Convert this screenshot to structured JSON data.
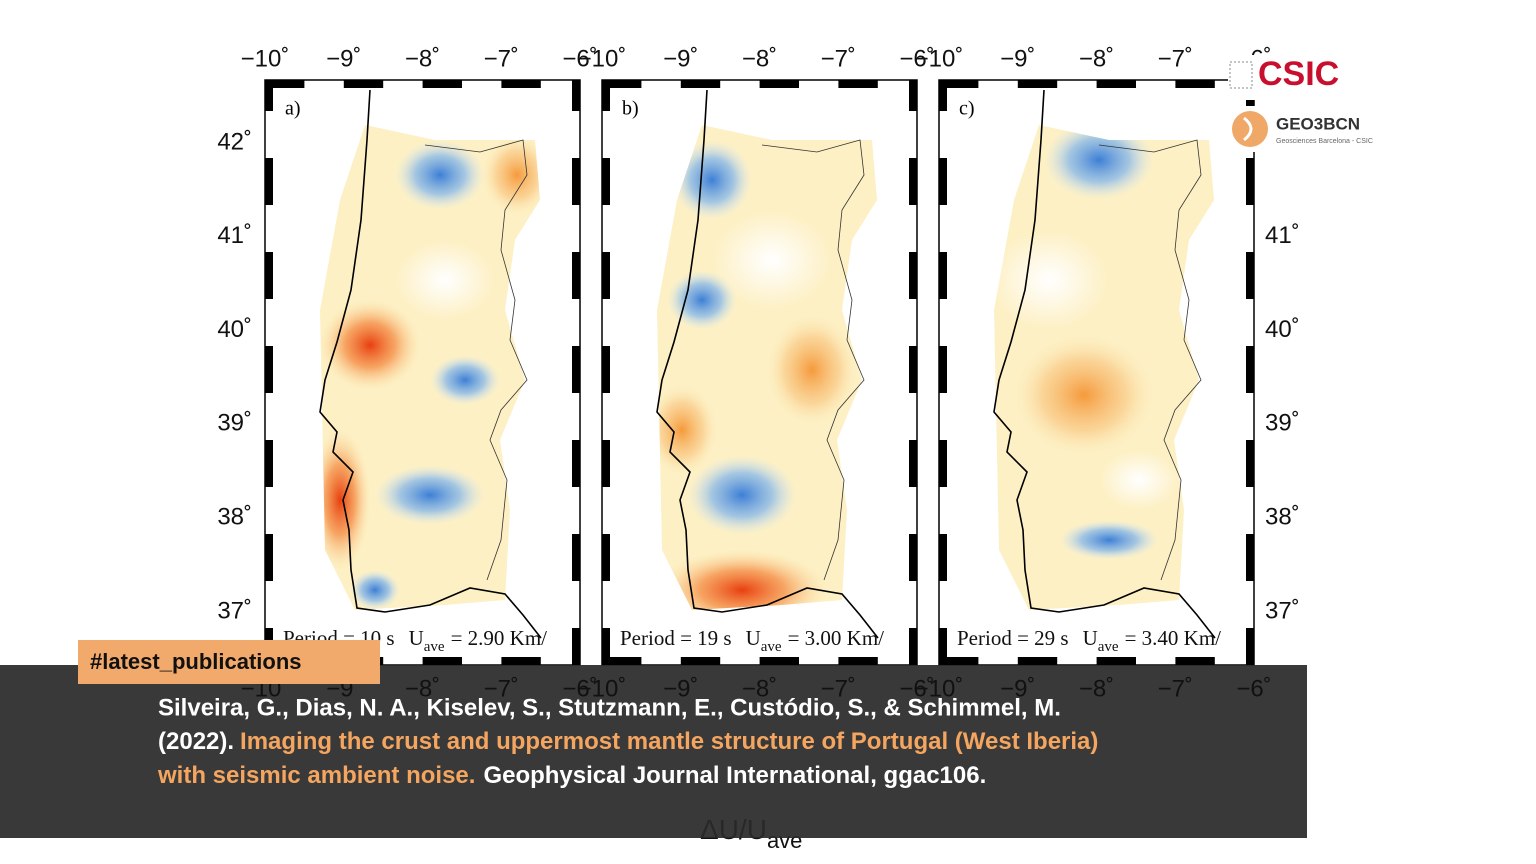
{
  "map": {
    "lon_ticks": [
      "−10˚",
      "−9˚",
      "−8˚",
      "−7˚",
      "−6˚"
    ],
    "lat_ticks": [
      "42˚",
      "41˚",
      "40˚",
      "39˚",
      "38˚",
      "37˚"
    ],
    "panels": [
      {
        "label": "a)",
        "period": "Period = 10 s",
        "u": "U",
        "u_sub": "ave",
        "u_value": "= 2.90 Km/"
      },
      {
        "label": "b)",
        "period": "Period = 19 s",
        "u": "U",
        "u_sub": "ave",
        "u_value": "= 3.00 Km/"
      },
      {
        "label": "c)",
        "period": "Period = 29 s",
        "u": "U",
        "u_sub": "ave",
        "u_value": "= 3.40 Km/"
      }
    ],
    "colorbar_label": "ΔU/U",
    "colorbar_label_sub": "ave"
  },
  "logos": {
    "csic": "CSIC",
    "geo": "GEO3BCN",
    "geo_sub": "Geosciences Barcelona - CSIC"
  },
  "overlay": {
    "tag": "#latest_publications",
    "authors": "Silveira, G., Dias, N. A., Kiselev, S., Stutzmann, E., Custódio, S., & Schimmel, M.",
    "year": "(2022).",
    "title_1": "Imaging the crust and uppermost mantle structure of Portugal (West Iberia)",
    "title_2": "with seismic ambient noise.",
    "journal": "Geophysical Journal International, ggac106."
  }
}
